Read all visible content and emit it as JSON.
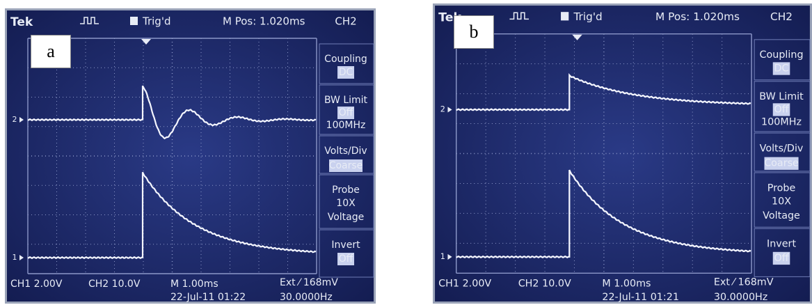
{
  "panels": [
    {
      "label": "a",
      "header": {
        "brand": "Tek",
        "trigger": "Trig'd",
        "position": "M Pos: 1.020ms",
        "channel": "CH2"
      },
      "menu": [
        {
          "title": "Coupling",
          "lines": [
            "DC"
          ]
        },
        {
          "title": "BW Limit",
          "lines": [
            "Off",
            "100MHz"
          ]
        },
        {
          "title": "Volts/Div",
          "lines": [
            "Coarse"
          ]
        },
        {
          "title": "Probe",
          "lines": [
            "10X",
            "Voltage"
          ]
        },
        {
          "title": "Invert",
          "lines": [
            "Off"
          ]
        }
      ],
      "markers": [
        "2",
        "1"
      ],
      "footer": {
        "ch1": "CH1  2.00V",
        "ch2": "CH2  10.0V",
        "time": "M 1.00ms",
        "date": "22-Jul-11 01:22",
        "trigger": "Ext ⁄ 168mV",
        "frequency": "30.0000Hz"
      }
    },
    {
      "label": "b",
      "header": {
        "brand": "Tek",
        "trigger": "Trig'd",
        "position": "M Pos: 1.020ms",
        "channel": "CH2"
      },
      "menu": [
        {
          "title": "Coupling",
          "lines": [
            "DC"
          ]
        },
        {
          "title": "BW Limit",
          "lines": [
            "Off",
            "100MHz"
          ]
        },
        {
          "title": "Volts/Div",
          "lines": [
            "Coarse"
          ]
        },
        {
          "title": "Probe",
          "lines": [
            "10X",
            "Voltage"
          ]
        },
        {
          "title": "Invert",
          "lines": [
            "Off"
          ]
        }
      ],
      "markers": [
        "2",
        "1"
      ],
      "footer": {
        "ch1": "CH1  2.00V",
        "ch2": "CH2  10.0V",
        "time": "M 1.00ms",
        "date": "22-Jul-11 01:21",
        "trigger": "Ext ⁄ 168mV",
        "frequency": "30.0000Hz"
      }
    }
  ]
}
